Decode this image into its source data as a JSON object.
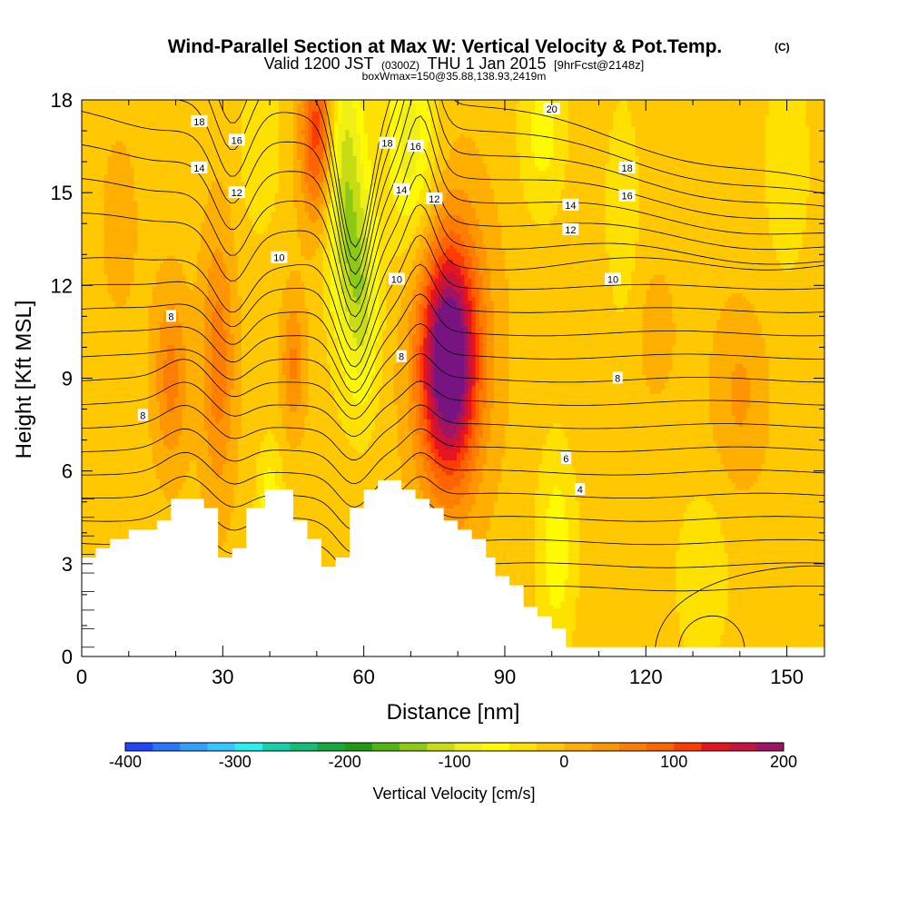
{
  "chart_data": {
    "type": "heatmap",
    "title": "Wind-Parallel Section at Max W: Vertical Velocity & Pot.Temp.",
    "title_badge": "(C)",
    "subtitle_parts": [
      "Valid 1200 JST",
      "(0300Z)",
      "THU 1 Jan 2015",
      "[9hrFcst@2148z]"
    ],
    "subtitle2": "boxWmax=150@35.88,138.93,2419m",
    "xlabel": "Distance [nm]",
    "ylabel": "Height [Kft MSL]",
    "xlim": [
      0,
      158
    ],
    "ylim": [
      0,
      18
    ],
    "x_ticks": [
      0,
      30,
      60,
      90,
      120,
      150
    ],
    "y_ticks": [
      0,
      3,
      6,
      9,
      12,
      15,
      18
    ],
    "x_tick_labels": [
      "0",
      "30",
      "60",
      "90",
      "120",
      "150"
    ],
    "y_tick_labels": [
      "0",
      "3",
      "6",
      "9",
      "12",
      "15",
      "18"
    ],
    "colorbar": {
      "label": "Vertical Velocity [cm/s]",
      "min": -400,
      "max": 200,
      "step": 25,
      "tick_labels": [
        "-400",
        "-300",
        "-200",
        "-100",
        "0",
        "100",
        "200"
      ],
      "tick_values": [
        -400,
        -300,
        -200,
        -100,
        0,
        100,
        200
      ]
    },
    "terrain": [
      [
        0,
        3.2
      ],
      [
        3,
        3.5
      ],
      [
        6,
        3.8
      ],
      [
        10,
        4.1
      ],
      [
        16,
        4.4
      ],
      [
        19,
        5.1
      ],
      [
        26,
        4.8
      ],
      [
        29,
        3.2
      ],
      [
        32,
        3.5
      ],
      [
        35,
        4.8
      ],
      [
        39,
        5.4
      ],
      [
        45,
        4.4
      ],
      [
        48,
        3.8
      ],
      [
        51,
        2.9
      ],
      [
        54,
        3.2
      ],
      [
        57,
        4.8
      ],
      [
        60,
        5.4
      ],
      [
        63,
        5.7
      ],
      [
        68,
        5.4
      ],
      [
        71,
        5.1
      ],
      [
        74,
        4.8
      ],
      [
        77,
        4.4
      ],
      [
        80,
        4.1
      ],
      [
        83,
        3.8
      ],
      [
        86,
        3.2
      ],
      [
        88,
        2.6
      ],
      [
        91,
        2.3
      ],
      [
        94,
        1.6
      ],
      [
        97,
        1.3
      ],
      [
        100,
        0.9
      ],
      [
        103,
        0.3
      ],
      [
        158,
        0.3
      ]
    ],
    "velocity_features": [
      {
        "x": 78,
        "y": 9.5,
        "sx": 4,
        "sy": 2.5,
        "w": 215
      },
      {
        "x": 79,
        "y": 10,
        "sx": 6,
        "sy": 3.5,
        "w": 70
      },
      {
        "x": 29,
        "y": 9.5,
        "sx": 2.5,
        "sy": 3,
        "w": 75
      },
      {
        "x": 19,
        "y": 9,
        "sx": 2.5,
        "sy": 2,
        "w": 70
      },
      {
        "x": 45,
        "y": 9.5,
        "sx": 1.8,
        "sy": 1.5,
        "w": 65
      },
      {
        "x": 50,
        "y": 17,
        "sx": 2.5,
        "sy": 2,
        "w": 125
      },
      {
        "x": 122,
        "y": 10.5,
        "sx": 3,
        "sy": 1.5,
        "w": 25
      },
      {
        "x": 140,
        "y": 8.5,
        "sx": 4,
        "sy": 2,
        "w": 40
      },
      {
        "x": 56,
        "y": 15,
        "sx": 2.8,
        "sy": 3.5,
        "w": -110
      },
      {
        "x": 60,
        "y": 11.5,
        "sx": 2.5,
        "sy": 2.5,
        "w": -85
      },
      {
        "x": 70,
        "y": 16.5,
        "sx": 4,
        "sy": 2.5,
        "w": -80
      },
      {
        "x": 98,
        "y": 17,
        "sx": 3.5,
        "sy": 2,
        "w": -50
      },
      {
        "x": 115,
        "y": 14.5,
        "sx": 3,
        "sy": 3,
        "w": -30
      },
      {
        "x": 150,
        "y": 16,
        "sx": 4,
        "sy": 3,
        "w": -30
      },
      {
        "x": 101,
        "y": 3.5,
        "sx": 3,
        "sy": 2.5,
        "w": -55
      },
      {
        "x": 132,
        "y": 2.5,
        "sx": 4,
        "sy": 2,
        "w": -40
      },
      {
        "x": 40,
        "y": 4.8,
        "sx": 2,
        "sy": 1.5,
        "w": -60
      },
      {
        "x": 38,
        "y": 16.5,
        "sx": 3,
        "sy": 2,
        "w": -40
      },
      {
        "x": 8,
        "y": 14,
        "sx": 4,
        "sy": 3,
        "w": 15
      }
    ],
    "contour_labels": [
      {
        "x": 25,
        "y": 17.3,
        "t": "18"
      },
      {
        "x": 33,
        "y": 16.7,
        "t": "16"
      },
      {
        "x": 25,
        "y": 15.8,
        "t": "14"
      },
      {
        "x": 33,
        "y": 15.0,
        "t": "12"
      },
      {
        "x": 42,
        "y": 12.9,
        "t": "10"
      },
      {
        "x": 19,
        "y": 11.0,
        "t": "8"
      },
      {
        "x": 13,
        "y": 7.8,
        "t": "8"
      },
      {
        "x": 65,
        "y": 16.6,
        "t": "18"
      },
      {
        "x": 71,
        "y": 16.5,
        "t": "16"
      },
      {
        "x": 68,
        "y": 15.1,
        "t": "14"
      },
      {
        "x": 75,
        "y": 14.8,
        "t": "12"
      },
      {
        "x": 67,
        "y": 12.2,
        "t": "10"
      },
      {
        "x": 68,
        "y": 9.7,
        "t": "8"
      },
      {
        "x": 100,
        "y": 17.7,
        "t": "20"
      },
      {
        "x": 116,
        "y": 15.8,
        "t": "18"
      },
      {
        "x": 116,
        "y": 14.9,
        "t": "16"
      },
      {
        "x": 104,
        "y": 14.6,
        "t": "14"
      },
      {
        "x": 104,
        "y": 13.8,
        "t": "12"
      },
      {
        "x": 113,
        "y": 12.2,
        "t": "10"
      },
      {
        "x": 114,
        "y": 9.0,
        "t": "8"
      },
      {
        "x": 103,
        "y": 6.4,
        "t": "6"
      },
      {
        "x": 106,
        "y": 5.4,
        "t": "4"
      }
    ]
  }
}
